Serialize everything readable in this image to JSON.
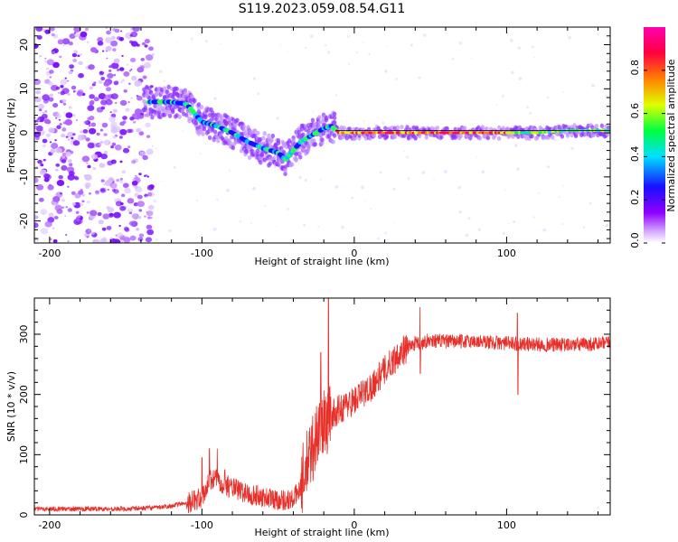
{
  "title": "S119.2023.059.08.54.G11",
  "chart_data": [
    {
      "type": "heatmap",
      "xlabel": "Height of straight line (km)",
      "ylabel": "Frequency (Hz)",
      "xlim": [
        -210,
        168
      ],
      "ylim": [
        -25,
        24
      ],
      "xticks": [
        -200,
        -100,
        0,
        100
      ],
      "yticks": [
        -20,
        -10,
        0,
        10,
        20
      ],
      "colorbar": {
        "label": "Normalized spectral amplitude",
        "range": [
          0,
          1
        ],
        "ticks": [
          "0.0",
          "0.2",
          "0.4",
          "0.6",
          "0.8"
        ],
        "colormap": [
          "#ffffff",
          "#a000ff",
          "#2000ff",
          "#00e0ff",
          "#00ff40",
          "#e0ff00",
          "#ff8000",
          "#ff0040",
          "#ff00a0"
        ]
      },
      "ridge": {
        "x": [
          -135,
          -120,
          -110,
          -100,
          -90,
          -80,
          -70,
          -60,
          -50,
          -45,
          -40,
          -35,
          -30,
          -25,
          -20,
          -15,
          -10,
          0,
          20,
          40,
          60,
          80,
          100,
          120,
          140,
          168
        ],
        "y": [
          7,
          7,
          6.5,
          2.5,
          1.5,
          0,
          -2,
          -3.5,
          -4.5,
          -6,
          -4,
          -2,
          -1,
          0,
          1,
          1.5,
          0,
          0,
          0,
          0,
          0,
          0,
          0,
          0,
          0.5,
          0.5
        ]
      }
    },
    {
      "type": "line",
      "xlabel": "Height of straight line (km)",
      "ylabel": "SNR (10 * v/v)",
      "xlim": [
        -210,
        168
      ],
      "ylim": [
        0,
        360
      ],
      "xticks": [
        -200,
        -100,
        0,
        100
      ],
      "yticks": [
        0,
        100,
        200,
        300
      ],
      "color": "#e8302a",
      "envelope": {
        "x": [
          -210,
          -180,
          -150,
          -130,
          -120,
          -110,
          -100,
          -95,
          -90,
          -85,
          -80,
          -70,
          -60,
          -50,
          -40,
          -35,
          -30,
          -25,
          -20,
          -15,
          -10,
          0,
          10,
          20,
          30,
          40,
          50,
          60,
          80,
          100,
          120,
          140,
          168
        ],
        "y": [
          10,
          10,
          10,
          12,
          15,
          20,
          28,
          55,
          60,
          50,
          45,
          35,
          30,
          25,
          25,
          50,
          90,
          130,
          150,
          165,
          175,
          190,
          210,
          240,
          270,
          285,
          290,
          288,
          288,
          285,
          283,
          282,
          285
        ]
      },
      "spikes": {
        "x": [
          -100,
          -95,
          -90,
          -85,
          -22,
          -17,
          43,
          107
        ],
        "y": [
          95,
          110,
          110,
          75,
          270,
          360,
          345,
          335
        ]
      },
      "dips": {
        "x": [
          43,
          107
        ],
        "y": [
          235,
          200
        ]
      }
    }
  ]
}
